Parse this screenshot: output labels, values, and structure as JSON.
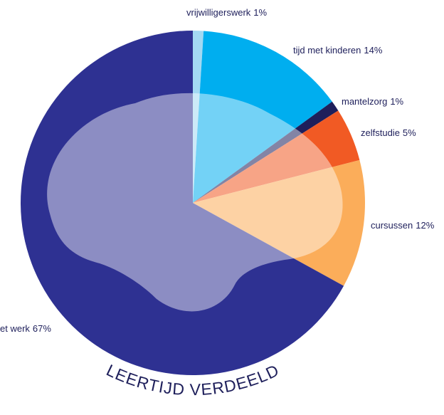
{
  "chart_data": {
    "type": "pie",
    "title": "LEERTIJD VERDEELD",
    "categories": [
      "vrijwilligerswerk",
      "tijd met kinderen",
      "mantelzorg",
      "zelfstudie",
      "cursussen",
      "et werk"
    ],
    "values": [
      1,
      14,
      1,
      5,
      12,
      67
    ],
    "value_labels": [
      "1%",
      "14%",
      "1%",
      "5%",
      "12%",
      "67%"
    ],
    "colors": [
      "#a3d9f3",
      "#00aeef",
      "#1e1f5b",
      "#f15a24",
      "#fbad5a",
      "#2e3192"
    ]
  }
}
